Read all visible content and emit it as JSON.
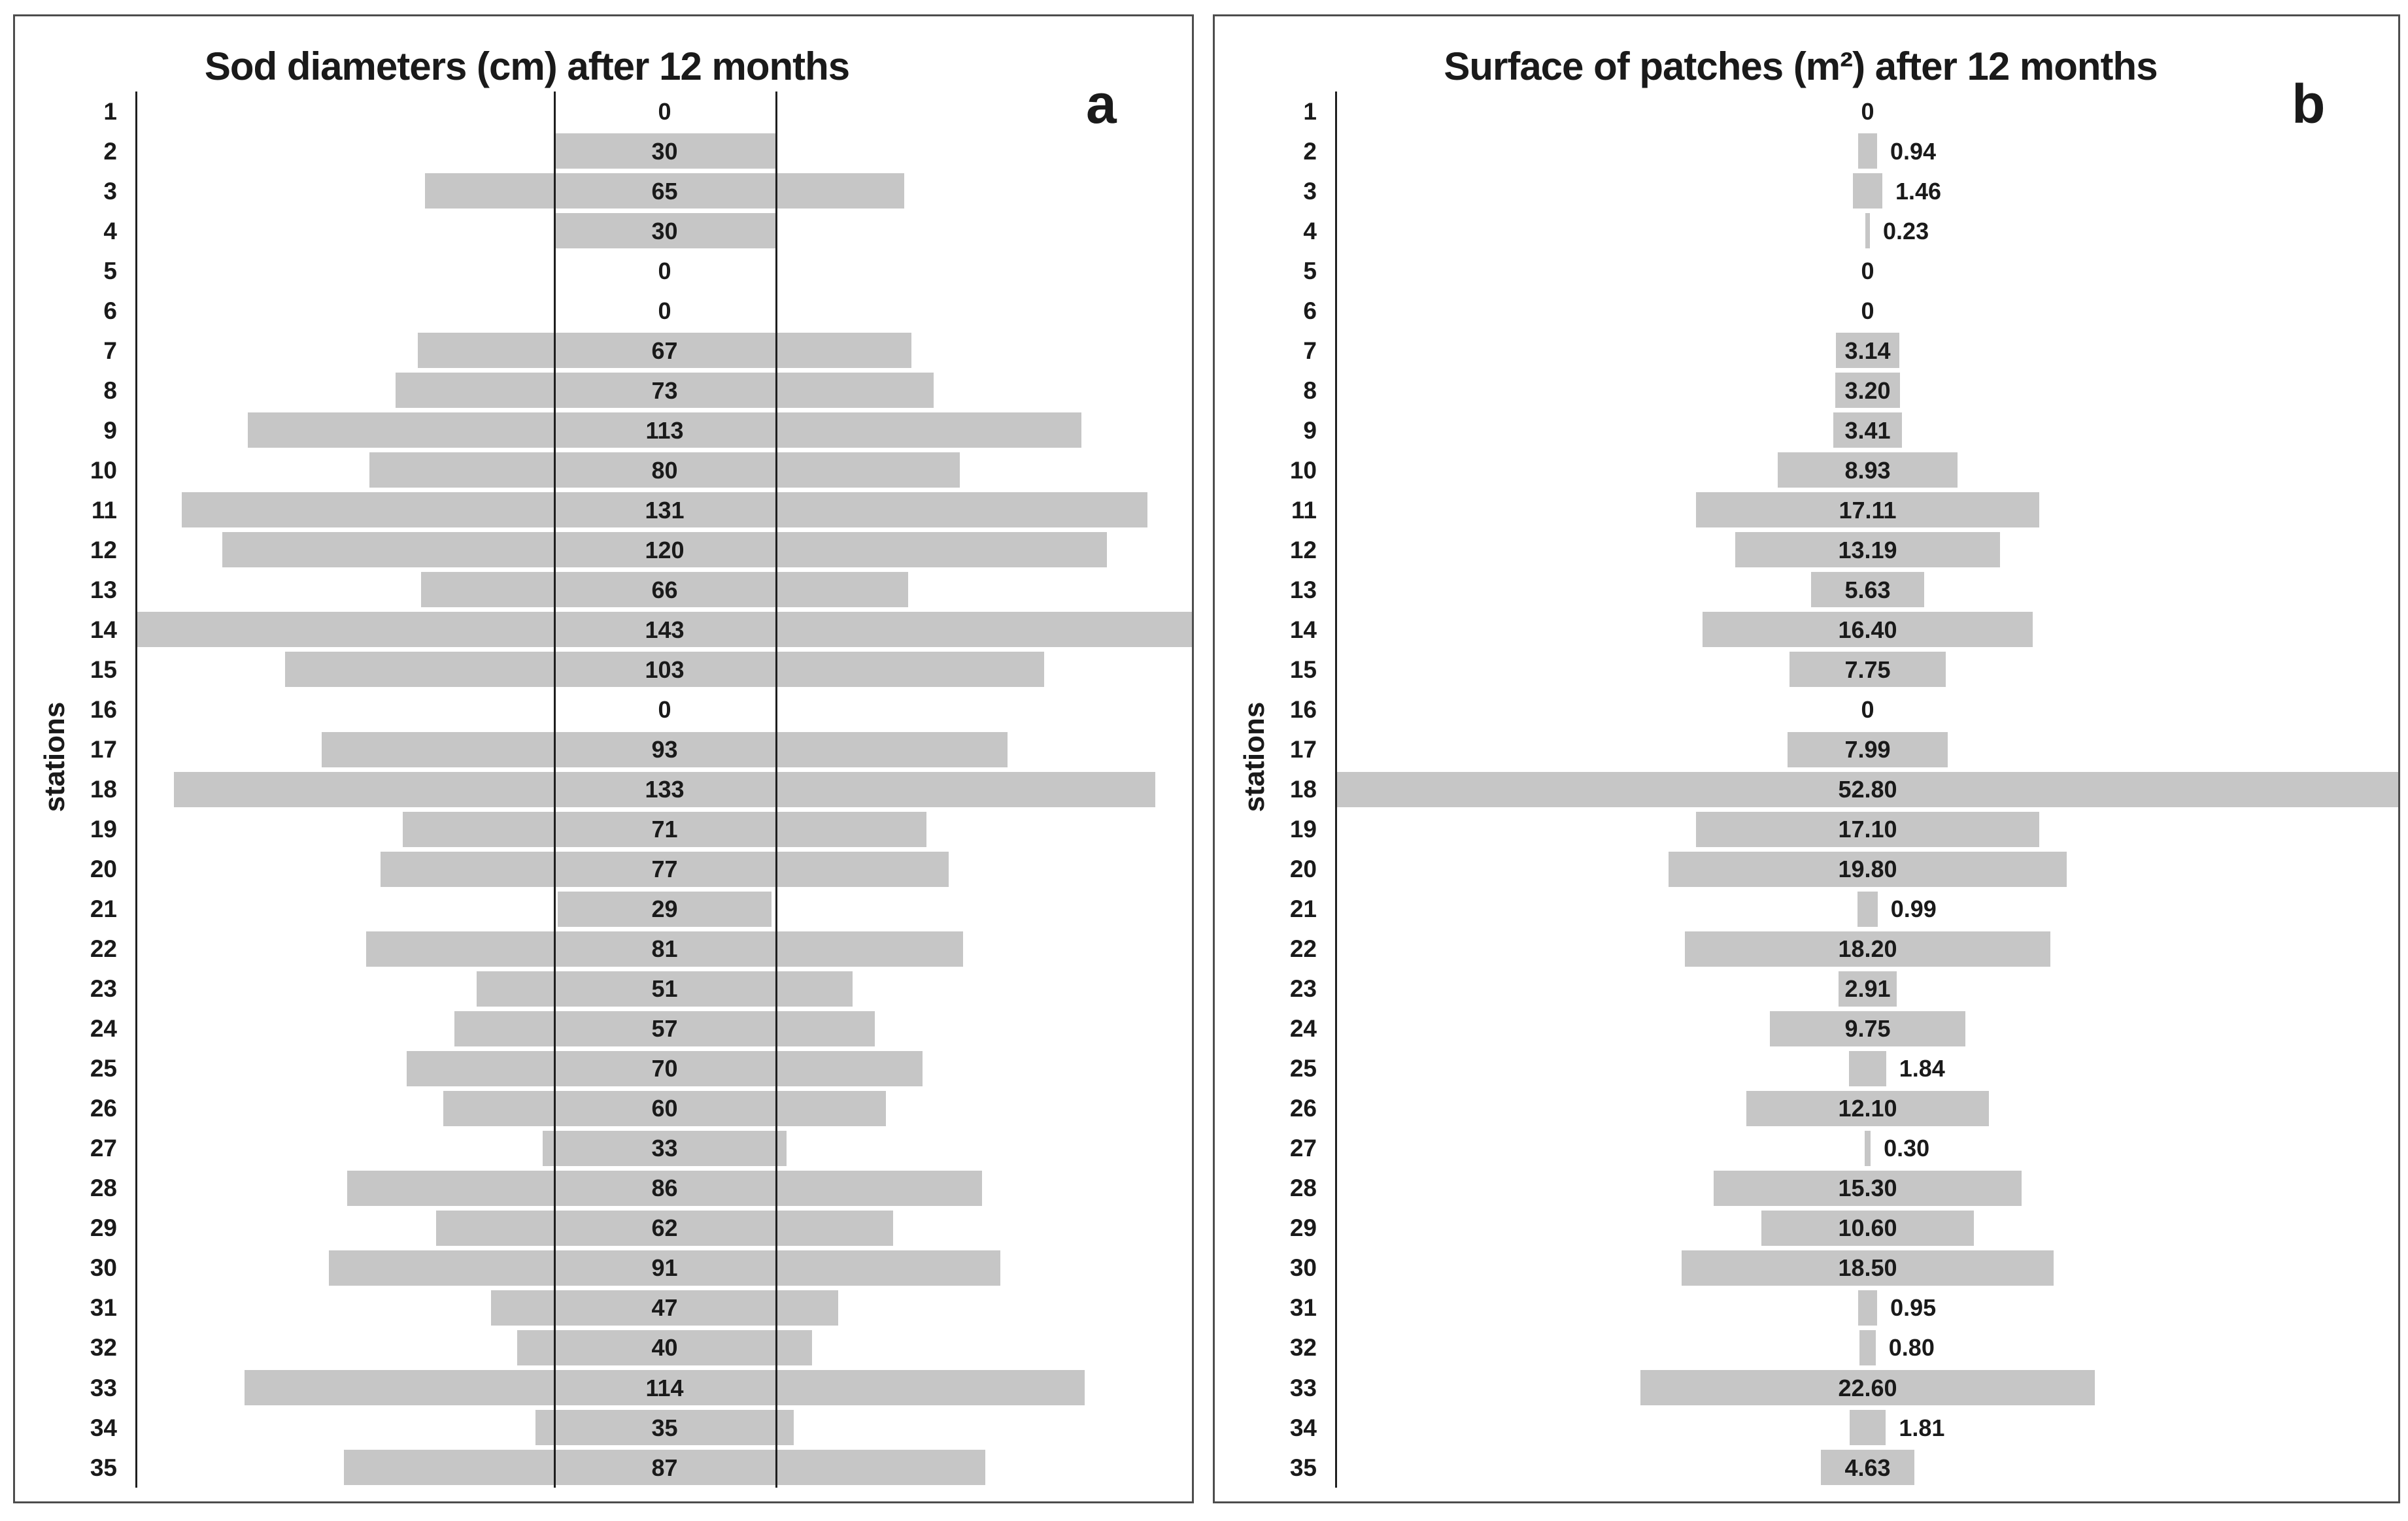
{
  "figure": {
    "background": "#ffffff",
    "panel_border_color": "#4d4d4d",
    "bar_color": "#c6c6c6",
    "axis_color": "#1f1f1f",
    "text_color": "#1a1a1a"
  },
  "chart_data": [
    {
      "panel_letter": "a",
      "type": "bar",
      "orientation": "horizontal-centered",
      "title": "Sod diameters (cm) after 12 months",
      "ylabel": "stations",
      "grid": false,
      "legend_position": "none",
      "stations": [
        1,
        2,
        3,
        4,
        5,
        6,
        7,
        8,
        9,
        10,
        11,
        12,
        13,
        14,
        15,
        16,
        17,
        18,
        19,
        20,
        21,
        22,
        23,
        24,
        25,
        26,
        27,
        28,
        29,
        30,
        31,
        32,
        33,
        34,
        35
      ],
      "values": [
        0,
        30,
        65,
        30,
        0,
        0,
        67,
        73,
        113,
        80,
        131,
        120,
        66,
        143,
        103,
        0,
        93,
        133,
        71,
        77,
        29,
        81,
        51,
        57,
        70,
        60,
        33,
        86,
        62,
        91,
        47,
        40,
        114,
        35,
        87
      ],
      "value_labels": [
        "0",
        "30",
        "65",
        "30",
        "0",
        "0",
        "67",
        "73",
        "113",
        "80",
        "131",
        "120",
        "66",
        "143",
        "103",
        "0",
        "93",
        "133",
        "71",
        "77",
        "29",
        "81",
        "51",
        "57",
        "70",
        "60",
        "33",
        "86",
        "62",
        "91",
        "47",
        "40",
        "114",
        "35",
        "87"
      ],
      "scale_full_width_value": 143,
      "reference_lines_at_value": 30,
      "outside_label_below": 0
    },
    {
      "panel_letter": "b",
      "type": "bar",
      "orientation": "horizontal-centered",
      "title": "Surface of patches (m²) after 12 months",
      "ylabel": "stations",
      "grid": false,
      "legend_position": "none",
      "stations": [
        1,
        2,
        3,
        4,
        5,
        6,
        7,
        8,
        9,
        10,
        11,
        12,
        13,
        14,
        15,
        16,
        17,
        18,
        19,
        20,
        21,
        22,
        23,
        24,
        25,
        26,
        27,
        28,
        29,
        30,
        31,
        32,
        33,
        34,
        35
      ],
      "values": [
        0,
        0.94,
        1.46,
        0.23,
        0,
        0,
        3.14,
        3.2,
        3.41,
        8.93,
        17.11,
        13.19,
        5.63,
        16.4,
        7.75,
        0,
        7.99,
        52.8,
        17.1,
        19.8,
        0.99,
        18.2,
        2.91,
        9.75,
        1.84,
        12.1,
        0.3,
        15.3,
        10.6,
        18.5,
        0.95,
        0.8,
        22.6,
        1.81,
        4.63
      ],
      "value_labels": [
        "0",
        "0.94",
        "1.46",
        "0.23",
        "0",
        "0",
        "3.14",
        "3.20",
        "3.41",
        "8.93",
        "17.11",
        "13.19",
        "5.63",
        "16.40",
        "7.75",
        "0",
        "7.99",
        "52.80",
        "17.10",
        "19.80",
        "0.99",
        "18.20",
        "2.91",
        "9.75",
        "1.84",
        "12.10",
        "0.30",
        "15.30",
        "10.60",
        "18.50",
        "0.95",
        "0.80",
        "22.60",
        "1.81",
        "4.63"
      ],
      "scale_full_width_value": 52.8,
      "reference_lines_at_value": null,
      "outside_label_below": 2
    }
  ]
}
